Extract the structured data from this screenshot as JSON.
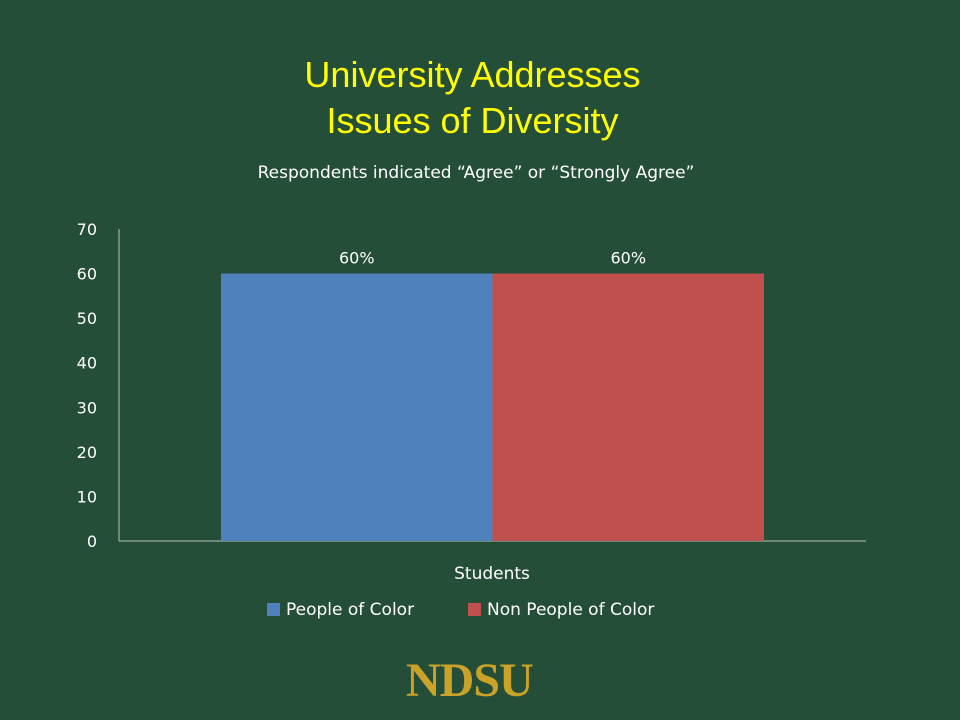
{
  "slide": {
    "title_line1": "University Addresses",
    "title_line2": "Issues of Diversity",
    "logo_text": "NDSU"
  },
  "colors": {
    "background": "#254e38",
    "title": "#ffff00",
    "axis": "#b8c4bc",
    "logo": "#c9a227"
  },
  "chart_data": {
    "type": "bar",
    "subtitle": "Respondents indicated “Agree” or “Strongly Agree”",
    "categories": [
      "Students"
    ],
    "series": [
      {
        "name": "People of Color",
        "values": [
          60
        ],
        "color": "#4f81bd",
        "label": "60%"
      },
      {
        "name": "Non People of Color",
        "values": [
          60
        ],
        "color": "#c0504d",
        "label": "60%"
      }
    ],
    "ylim": [
      0,
      70
    ],
    "yticks": [
      0,
      10,
      20,
      30,
      40,
      50,
      60,
      70
    ],
    "grid": false,
    "legend_position": "bottom"
  }
}
